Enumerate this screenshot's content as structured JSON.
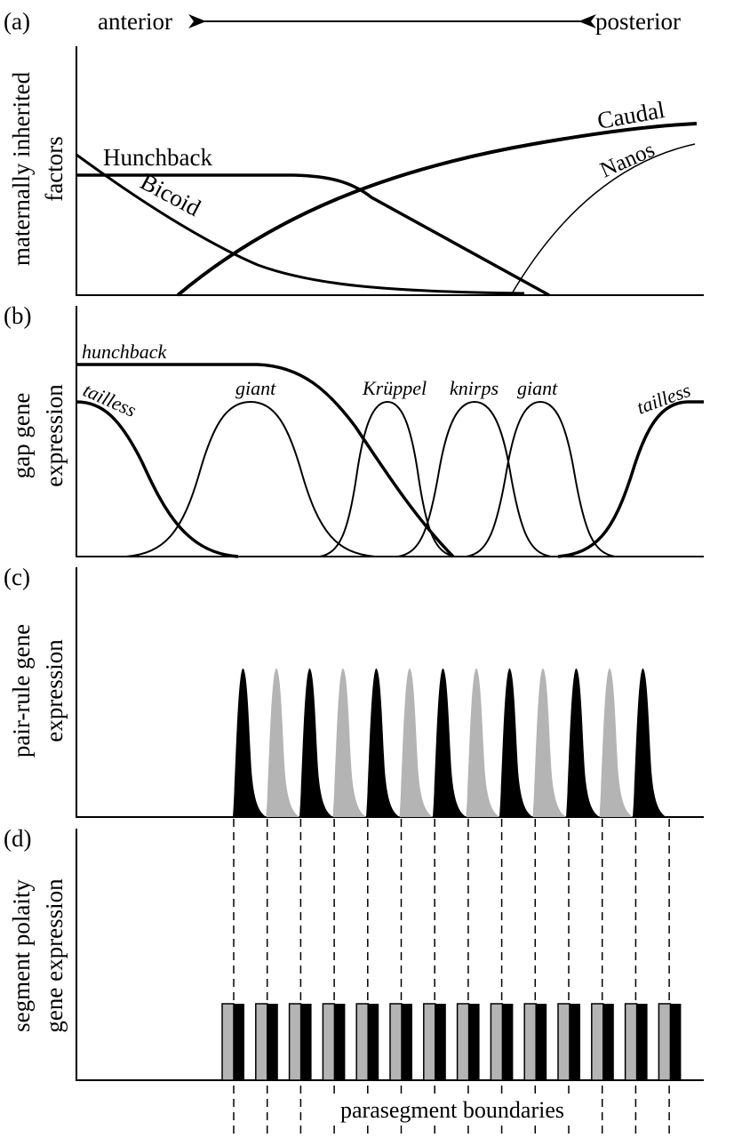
{
  "header": {
    "anterior": "anterior",
    "posterior": "posterior"
  },
  "panels": {
    "a": {
      "label": "(a)",
      "ylabel_line1": "maternally inherited",
      "ylabel_line2": "factors",
      "curves": [
        "Hunchback",
        "Bicoid",
        "Caudal",
        "Nanos"
      ]
    },
    "b": {
      "label": "(b)",
      "ylabel_line1": "gap gene",
      "ylabel_line2": "expression",
      "curves": [
        "hunchback",
        "tailless",
        "giant",
        "Krüppel",
        "knirps",
        "giant",
        "tailless"
      ]
    },
    "c": {
      "label": "(c)",
      "ylabel_line1": "pair-rule gene",
      "ylabel_line2": "expression",
      "peak_count": 13
    },
    "d": {
      "label": "(d)",
      "ylabel_line1": "segment polaity",
      "ylabel_line2": "gene expression",
      "block_count": 14,
      "footer": "parasegment boundaries"
    }
  },
  "colors": {
    "black": "#000000",
    "grey": "#b4b4b4"
  }
}
